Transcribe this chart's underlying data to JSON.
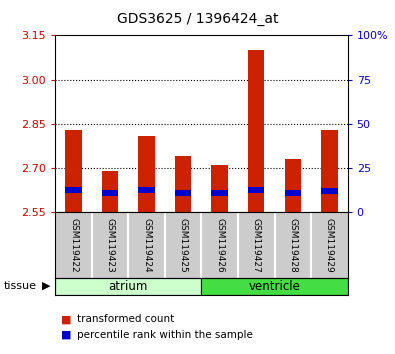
{
  "title": "GDS3625 / 1396424_at",
  "samples": [
    "GSM119422",
    "GSM119423",
    "GSM119424",
    "GSM119425",
    "GSM119426",
    "GSM119427",
    "GSM119428",
    "GSM119429"
  ],
  "tissue_groups": [
    {
      "name": "atrium",
      "indices": [
        0,
        1,
        2,
        3
      ],
      "color": "#ccffcc"
    },
    {
      "name": "ventricle",
      "indices": [
        4,
        5,
        6,
        7
      ],
      "color": "#44dd44"
    }
  ],
  "baseline": 2.55,
  "red_values": [
    2.83,
    2.69,
    2.81,
    2.74,
    2.71,
    3.1,
    2.73,
    2.83
  ],
  "blue_bottom": [
    2.615,
    2.605,
    2.615,
    2.605,
    2.605,
    2.615,
    2.605,
    2.613
  ],
  "blue_top": [
    2.635,
    2.625,
    2.635,
    2.625,
    2.625,
    2.635,
    2.625,
    2.633
  ],
  "ylim_left": [
    2.55,
    3.15
  ],
  "yticks_left": [
    2.55,
    2.7,
    2.85,
    3.0,
    3.15
  ],
  "yticks_right": [
    0,
    25,
    50,
    75,
    100
  ],
  "right_tick_labels": [
    "0",
    "25",
    "50",
    "75",
    "100%"
  ],
  "bar_width": 0.45,
  "red_color": "#cc2200",
  "blue_color": "#0000cc",
  "bg_color": "#ffffff",
  "plot_bg": "#ffffff",
  "tick_label_color_left": "#cc0000",
  "tick_label_color_right": "#0000cc",
  "grid_color": "#000000",
  "sample_bg": "#cccccc",
  "legend_entries": [
    "transformed count",
    "percentile rank within the sample"
  ],
  "legend_colors": [
    "#cc2200",
    "#0000cc"
  ]
}
